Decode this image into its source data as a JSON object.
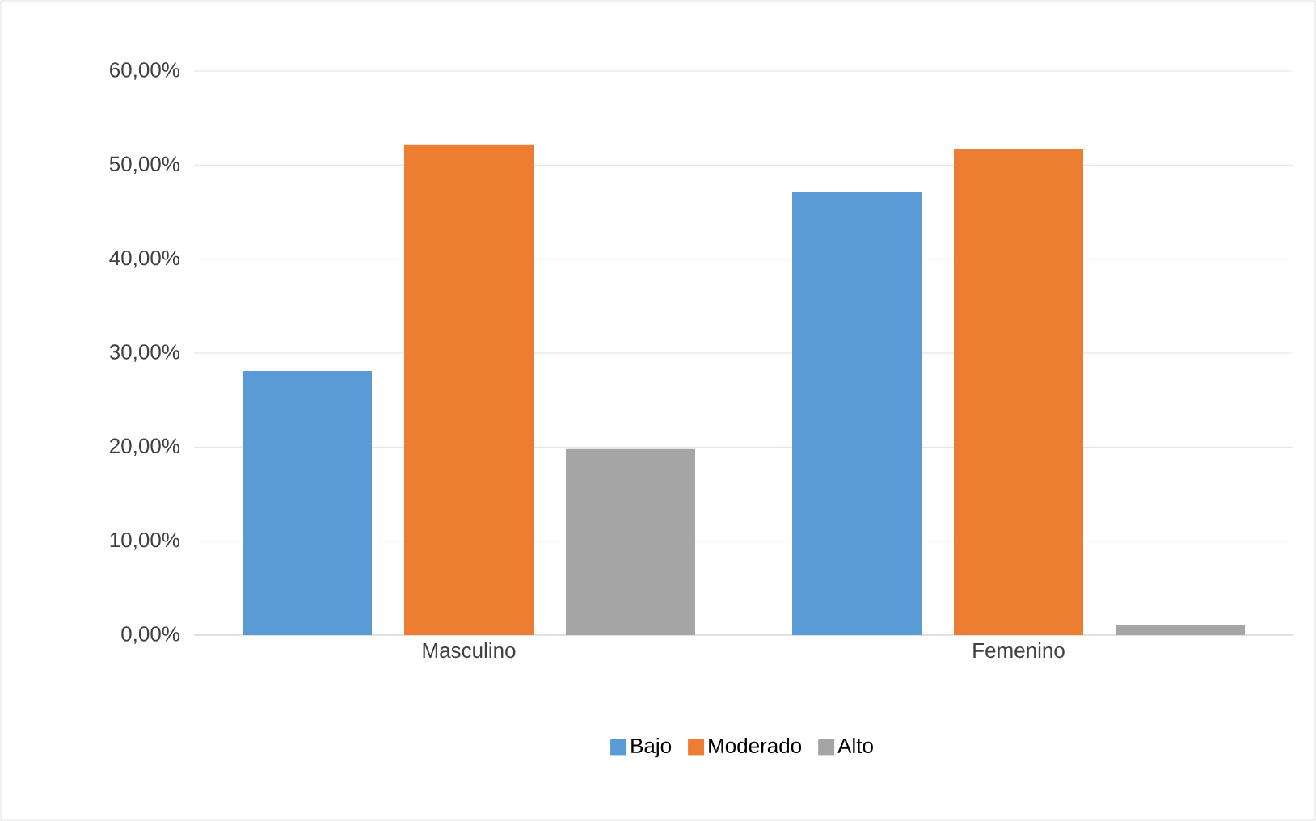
{
  "chart_data": {
    "type": "bar",
    "categories": [
      "Masculino",
      "Femenino"
    ],
    "series": [
      {
        "name": "Bajo",
        "color": "#5b9bd5",
        "values": [
          28.1,
          47.1
        ]
      },
      {
        "name": "Moderado",
        "color": "#ed7d31",
        "values": [
          52.2,
          51.7
        ]
      },
      {
        "name": "Alto",
        "color": "#a5a5a5",
        "values": [
          19.8,
          1.1
        ]
      }
    ],
    "ylim": [
      0,
      60
    ],
    "yticks": [
      {
        "value": 0,
        "label": "0,00%"
      },
      {
        "value": 10,
        "label": "10,00%"
      },
      {
        "value": 20,
        "label": "20,00%"
      },
      {
        "value": 30,
        "label": "30,00%"
      },
      {
        "value": 40,
        "label": "40,00%"
      },
      {
        "value": 50,
        "label": "50,00%"
      },
      {
        "value": 60,
        "label": "60,00%"
      }
    ],
    "grid": "y",
    "legend": "bottom"
  }
}
